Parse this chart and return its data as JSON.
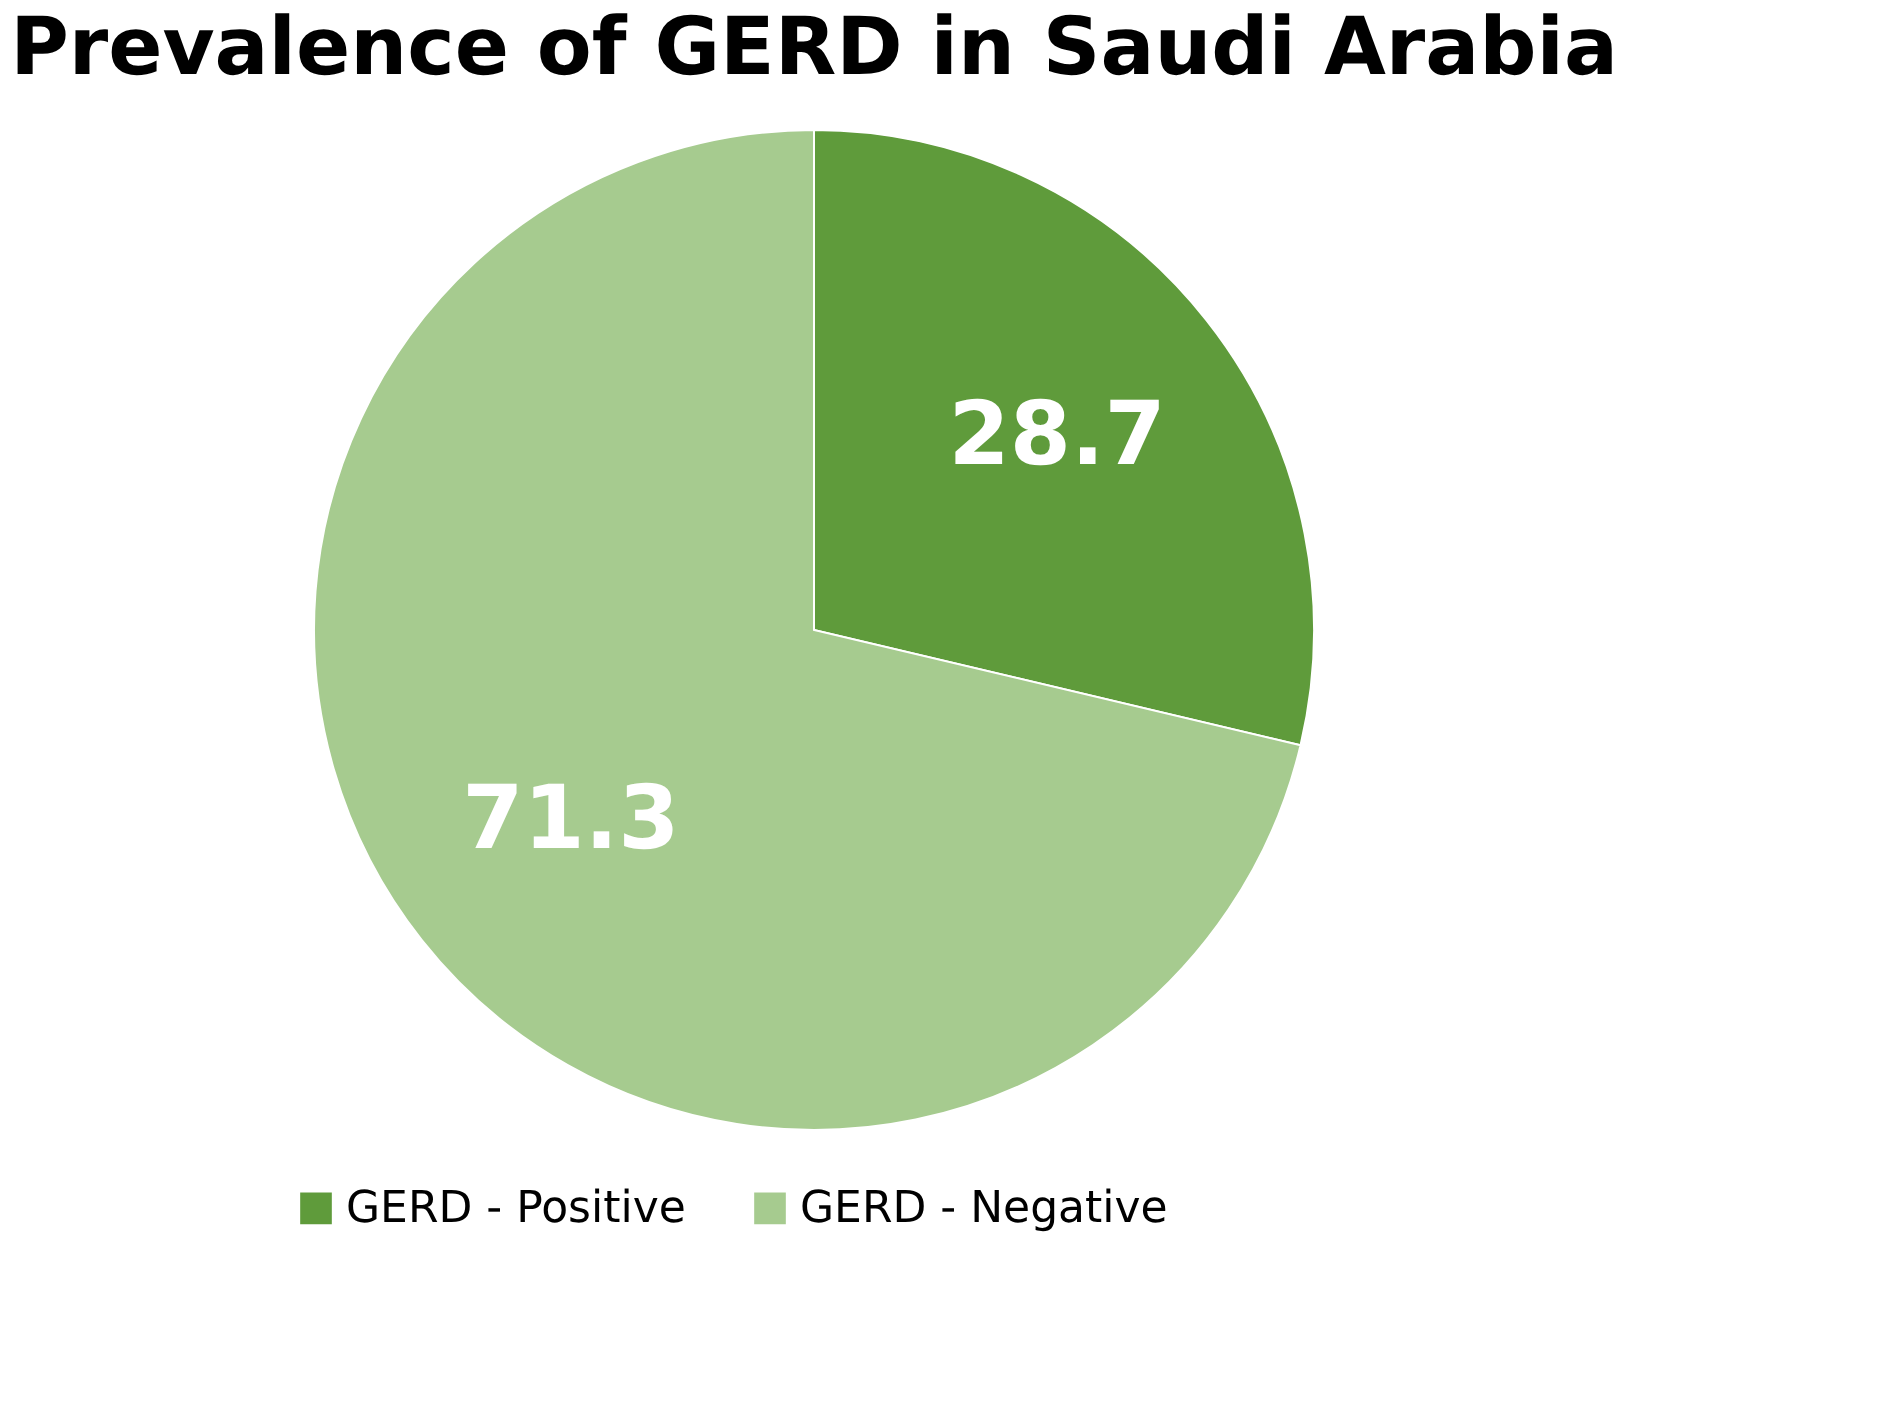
{
  "chart_data": {
    "type": "pie",
    "title": "Prevalence of GERD in Saudi Arabia",
    "categories": [
      "GERD - Positive",
      "GERD - Negative"
    ],
    "values": [
      28.7,
      71.3
    ],
    "colors": [
      "#5f9b3b",
      "#a6cb8f"
    ],
    "data_labels": true,
    "legend": "bottom"
  }
}
